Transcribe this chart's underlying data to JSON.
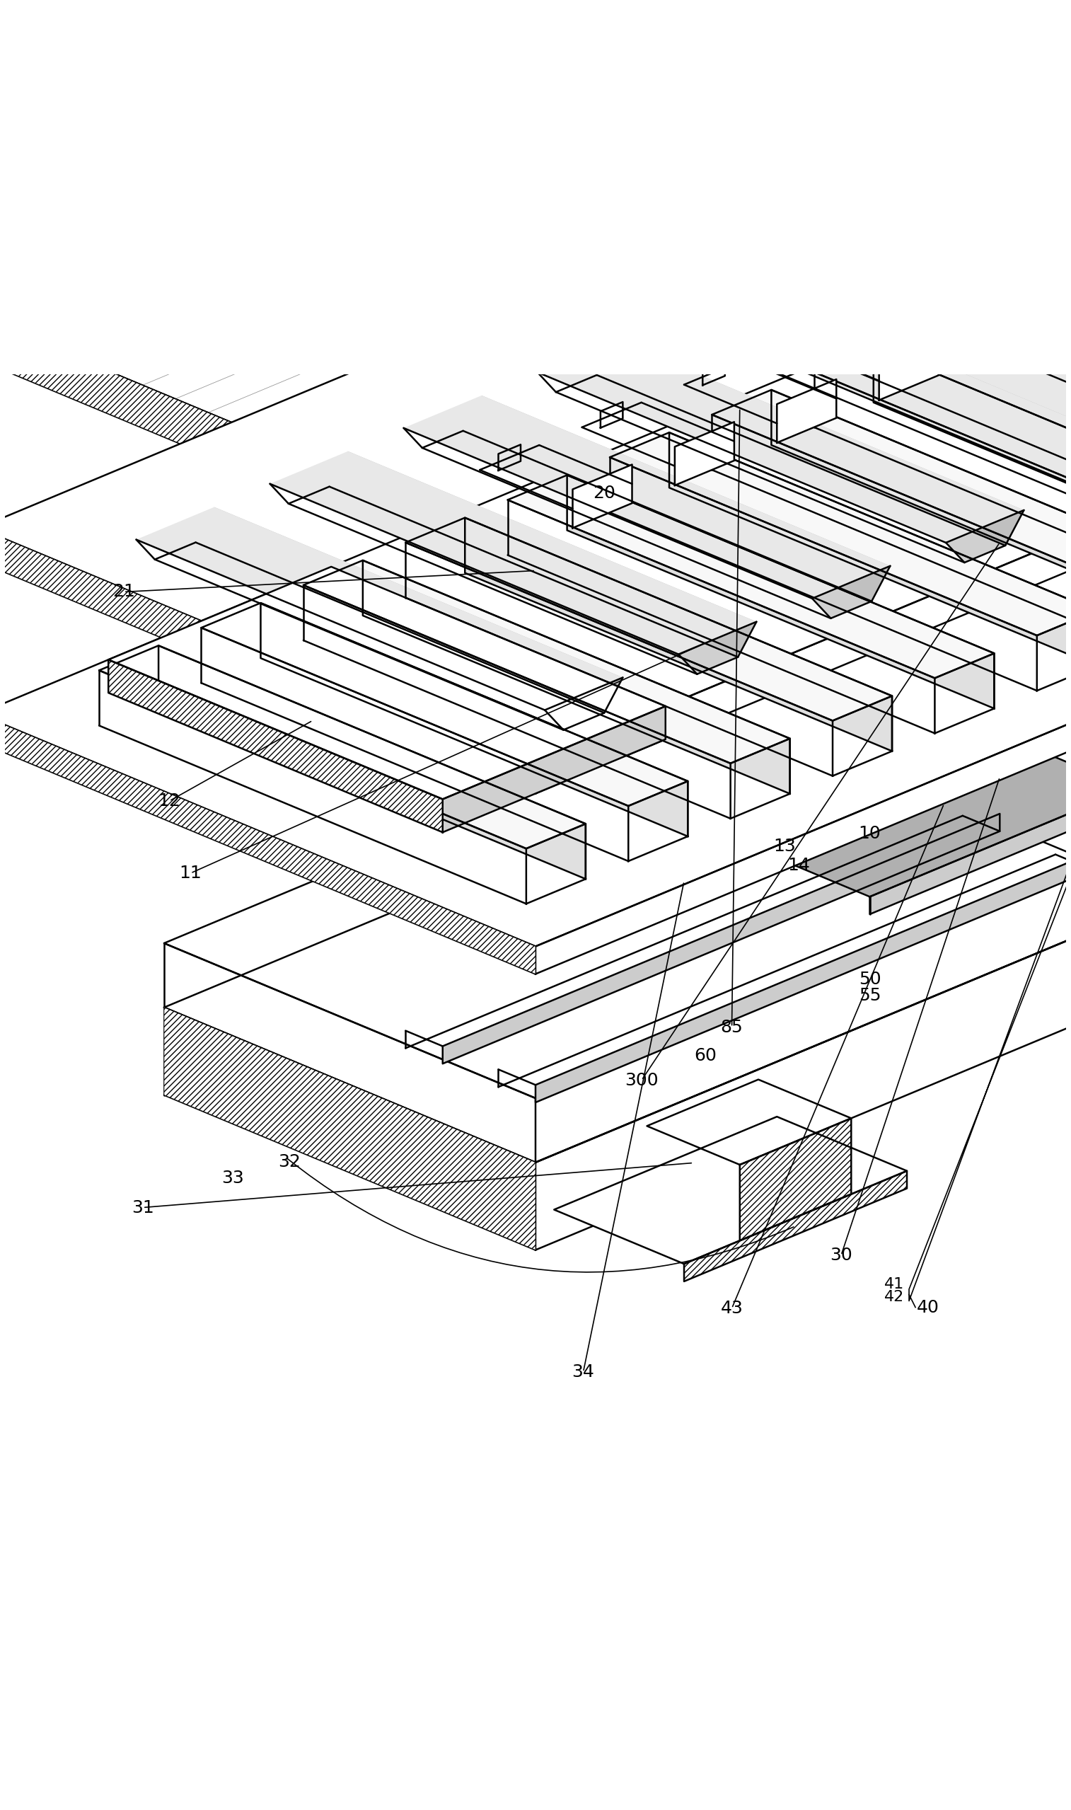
{
  "figure_width": 15.14,
  "figure_height": 25.58,
  "bg_color": "#ffffff",
  "label_fontsize": 18,
  "lw_main": 1.8,
  "lw_thin": 1.2
}
